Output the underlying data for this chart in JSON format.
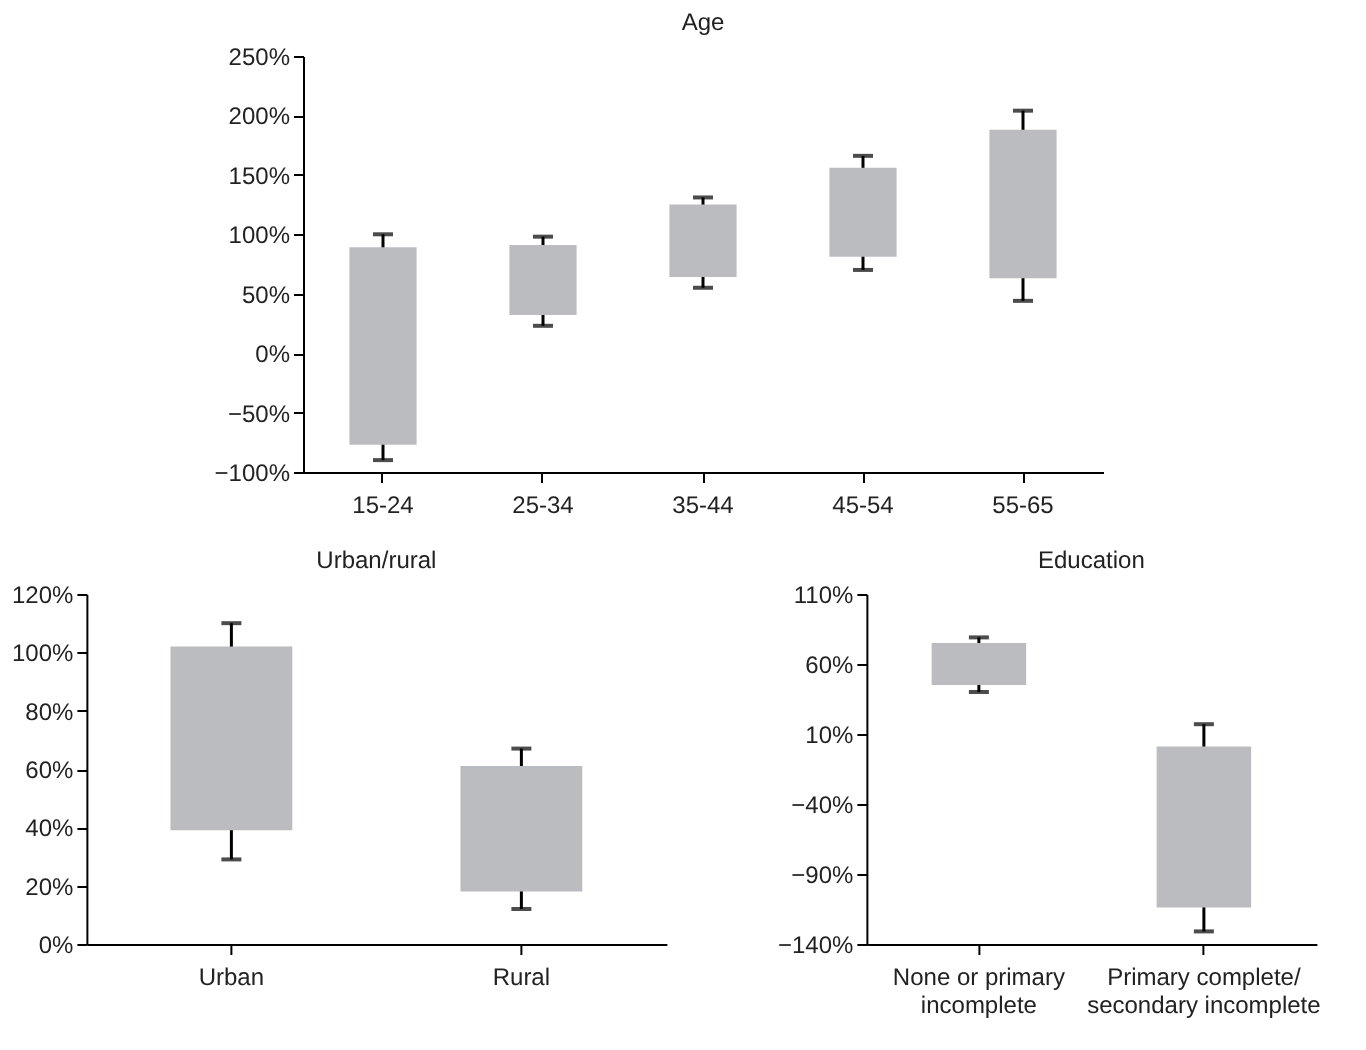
{
  "chart_data": [
    {
      "type": "bar",
      "title": "Age",
      "categories": [
        "15-24",
        "25-34",
        "35-44",
        "45-54",
        "55-65"
      ],
      "base": [
        -77,
        32,
        64,
        81,
        63
      ],
      "values": [
        166,
        59,
        61,
        75,
        125
      ],
      "errors": [
        [
          -90,
          100
        ],
        [
          23,
          98
        ],
        [
          55,
          131
        ],
        [
          70,
          166
        ],
        [
          44,
          204
        ]
      ],
      "color": "#bbbcc0",
      "ylim": [
        -100,
        250
      ],
      "yticks": [
        {
          "value": -100,
          "label": "−100%"
        },
        {
          "value": -50,
          "label": "−50%"
        },
        {
          "value": 0,
          "label": "0%"
        },
        {
          "value": 50,
          "label": "50%"
        },
        {
          "value": 100,
          "label": "100%"
        },
        {
          "value": 150,
          "label": "150%"
        },
        {
          "value": 200,
          "label": "200%"
        },
        {
          "value": 250,
          "label": "250%"
        }
      ]
    },
    {
      "type": "bar",
      "title": "Urban/rural",
      "categories": [
        "Urban",
        "Rural"
      ],
      "base": [
        39,
        18
      ],
      "values": [
        63,
        43
      ],
      "errors": [
        [
          29,
          110
        ],
        [
          12,
          67
        ]
      ],
      "color": "#bbbcc0",
      "ylim": [
        0,
        120
      ],
      "yticks": [
        {
          "value": 0,
          "label": "0%"
        },
        {
          "value": 20,
          "label": "20%"
        },
        {
          "value": 40,
          "label": "40%"
        },
        {
          "value": 60,
          "label": "60%"
        },
        {
          "value": 80,
          "label": "80%"
        },
        {
          "value": 100,
          "label": "100%"
        },
        {
          "value": 120,
          "label": "120%"
        }
      ]
    },
    {
      "type": "bar",
      "title": "Education",
      "categories": [
        "None or primary\nincomplete",
        "Primary complete/\nsecondary incomplete"
      ],
      "base": [
        45,
        -114
      ],
      "values": [
        30,
        115
      ],
      "errors": [
        [
          40,
          79
        ],
        [
          -131,
          17
        ]
      ],
      "color": "#bbbcc0",
      "ylim": [
        -140,
        110
      ],
      "yticks": [
        {
          "value": -140,
          "label": "−140%"
        },
        {
          "value": -90,
          "label": "−90%"
        },
        {
          "value": -40,
          "label": "−40%"
        },
        {
          "value": 10,
          "label": "10%"
        },
        {
          "value": 60,
          "label": "60%"
        },
        {
          "value": 110,
          "label": "110%"
        }
      ]
    }
  ]
}
